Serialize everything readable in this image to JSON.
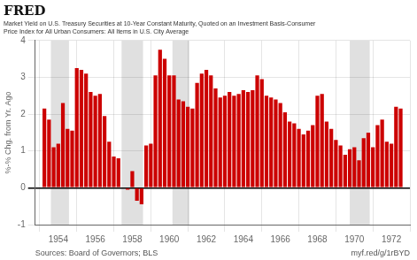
{
  "chart_data": {
    "type": "bar",
    "title": "FRED",
    "subtitle": "Market Yield on U.S. Treasury Securities at 10-Year Constant Maturity, Quoted on an Investment Basis-Consumer\nPrice Index for All Urban Consumers: All Items in U.S. City Average",
    "ylabel": "%-% Chg. from Yr. Ago",
    "x": [
      1953.25,
      1953.5,
      1953.75,
      1954.0,
      1954.25,
      1954.5,
      1954.75,
      1955.0,
      1955.25,
      1955.5,
      1955.75,
      1956.0,
      1956.25,
      1956.5,
      1956.75,
      1957.0,
      1957.25,
      1957.75,
      1958.0,
      1958.25,
      1958.5,
      1958.75,
      1959.0,
      1959.25,
      1959.5,
      1959.75,
      1960.0,
      1960.25,
      1960.5,
      1960.75,
      1961.0,
      1961.25,
      1961.5,
      1961.75,
      1962.0,
      1962.25,
      1962.5,
      1962.75,
      1963.0,
      1963.25,
      1963.5,
      1963.75,
      1964.0,
      1964.25,
      1964.5,
      1964.75,
      1965.0,
      1965.25,
      1965.5,
      1965.75,
      1966.0,
      1966.25,
      1966.5,
      1966.75,
      1967.0,
      1967.25,
      1967.5,
      1967.75,
      1968.0,
      1968.25,
      1968.5,
      1968.75,
      1969.0,
      1969.25,
      1969.5,
      1969.75,
      1970.0,
      1970.25,
      1970.5,
      1970.75,
      1971.0,
      1971.25,
      1971.5,
      1971.75,
      1972.0,
      1972.25,
      1972.5
    ],
    "values": [
      2.15,
      1.85,
      1.1,
      1.2,
      2.3,
      1.6,
      1.55,
      3.25,
      3.2,
      3.1,
      2.6,
      2.5,
      2.55,
      1.95,
      1.25,
      0.85,
      0.8,
      -0.05,
      0.45,
      -0.35,
      -0.45,
      1.15,
      1.2,
      3.05,
      3.75,
      3.5,
      3.05,
      3.05,
      2.4,
      2.35,
      2.2,
      2.15,
      2.85,
      3.1,
      3.2,
      3.05,
      2.7,
      2.45,
      2.5,
      2.6,
      2.5,
      2.55,
      2.65,
      2.6,
      2.65,
      3.05,
      2.95,
      2.5,
      2.45,
      2.4,
      2.3,
      2.05,
      1.8,
      1.75,
      1.6,
      1.45,
      1.55,
      1.7,
      2.5,
      2.55,
      1.8,
      1.6,
      1.3,
      1.15,
      0.9,
      1.05,
      1.1,
      0.75,
      1.35,
      1.5,
      1.1,
      1.7,
      1.85,
      1.25,
      1.2,
      2.2,
      2.15
    ],
    "color": "#cc0000",
    "xlim": [
      1952.75,
      1973.0
    ],
    "xticks": [
      1954,
      1956,
      1958,
      1960,
      1962,
      1964,
      1966,
      1968,
      1970,
      1972
    ],
    "ylim": [
      -1,
      4
    ],
    "yticks": [
      -1,
      0,
      1,
      2,
      3,
      4
    ],
    "grid": true,
    "shaded_ranges": [
      [
        1953.6,
        1954.58
      ],
      [
        1957.42,
        1958.58
      ],
      [
        1960.17,
        1961.08
      ],
      [
        1969.75,
        1970.83
      ]
    ],
    "annotations": [
      "Sources: Board of Governors; BLS",
      "myf.red/g/1rBYD"
    ]
  }
}
